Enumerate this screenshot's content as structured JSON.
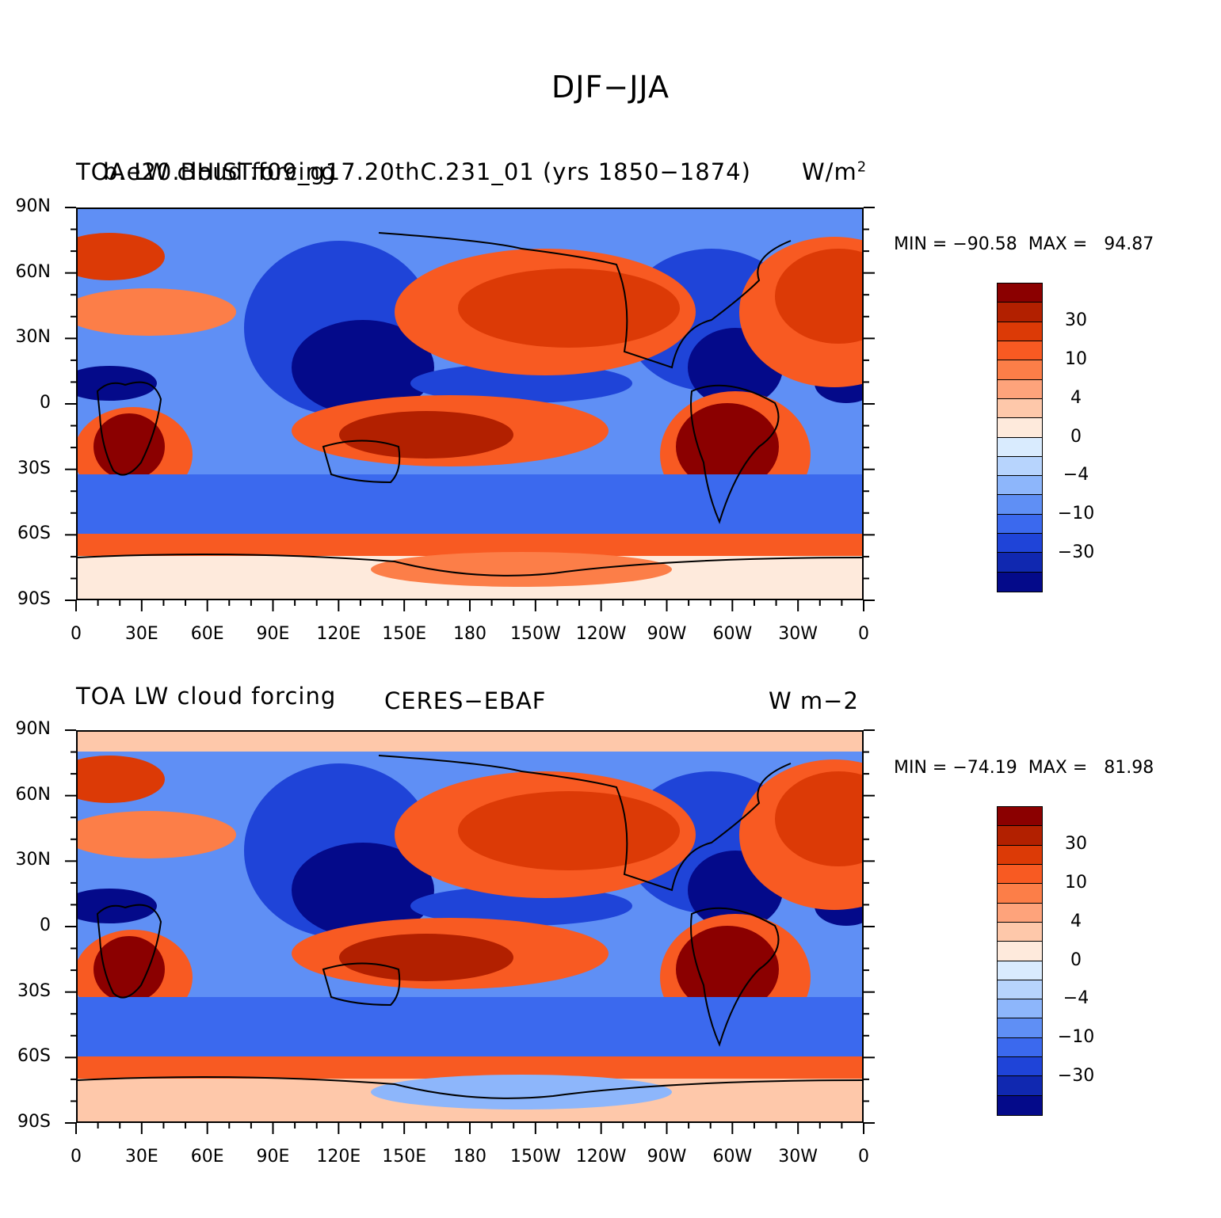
{
  "figure": {
    "main_title": "DJF−JJA"
  },
  "panels": [
    {
      "left_title": "TOA LW cloud forcing",
      "center_title": "b.e20.BHIST.f09_g17.20thC.231_01 (yrs 1850−1874)",
      "units": "W/m",
      "units_sup": "2",
      "stats": "MIN = −90.58  MAX =   94.87"
    },
    {
      "left_title": "TOA LW cloud forcing",
      "center_title": "CERES−EBAF",
      "units": "W m−2",
      "units_sup": "",
      "stats": "MIN = −74.19  MAX =   81.98"
    }
  ],
  "axes": {
    "lat_labels": [
      "90N",
      "60N",
      "30N",
      "0",
      "30S",
      "60S",
      "90S"
    ],
    "lon_labels": [
      "0",
      "30E",
      "60E",
      "90E",
      "120E",
      "150E",
      "180",
      "150W",
      "120W",
      "90W",
      "60W",
      "30W",
      "0"
    ]
  },
  "colorbar": {
    "colors": [
      "#8b0000",
      "#b22000",
      "#dc3a06",
      "#f85a22",
      "#fc7e48",
      "#fea37b",
      "#fec8aa",
      "#feeadc",
      "#d9ebfe",
      "#b7d4fd",
      "#8db6fb",
      "#5f8ff5",
      "#3b69ee",
      "#1f44d8",
      "#1028b0",
      "#040a8a"
    ],
    "labels": [
      "30",
      "10",
      "4",
      "0",
      "−4",
      "−10",
      "−30"
    ]
  }
}
